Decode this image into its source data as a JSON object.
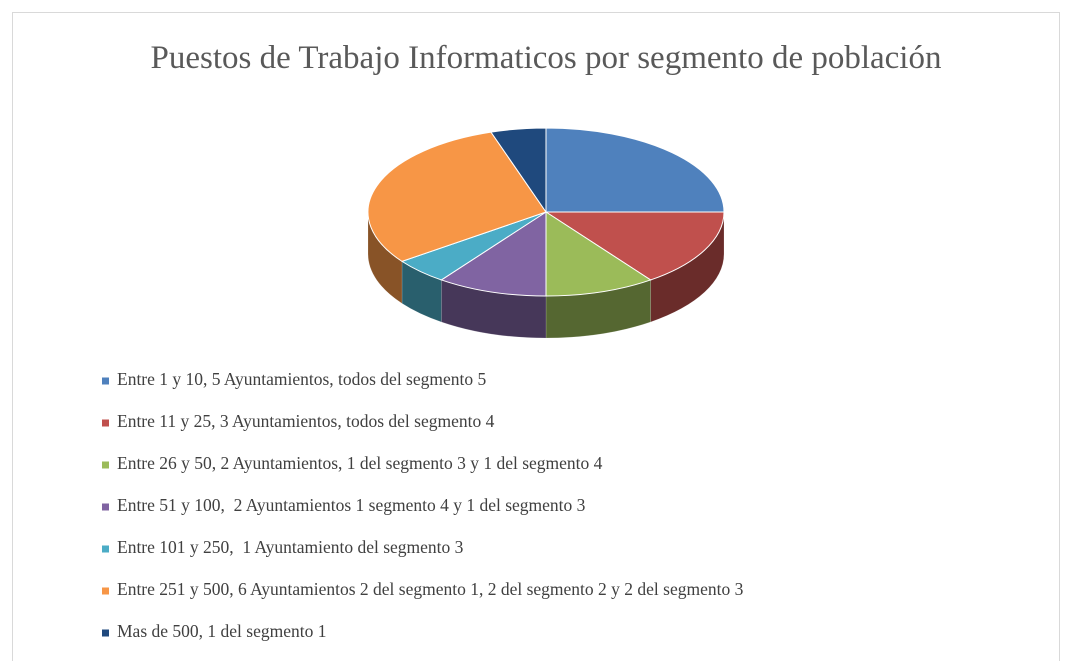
{
  "chart_data": {
    "type": "pie",
    "three_d": true,
    "title": "Puestos de Trabajo Informaticos por segmento de población",
    "categories": [
      "Entre 1 y 10, 5 Ayuntamientos, todos del segmento 5",
      "Entre 11 y 25, 3 Ayuntamientos, todos del segmento 4",
      "Entre 26 y 50, 2 Ayuntamientos, 1 del segmento 3 y 1 del segmento 4",
      "Entre 51 y 100,  2 Ayuntamientos 1 segmento 4 y 1 del segmento 3",
      "Entre 101 y 250,  1 Ayuntamiento del segmento 3",
      "Entre 251 y 500, 6 Ayuntamientos 2 del segmento 1, 2 del segmento 2 y 2 del segmento 3",
      "Mas de 500, 1 del segmento 1"
    ],
    "values": [
      5,
      3,
      2,
      2,
      1,
      6,
      1
    ],
    "colors": [
      "#4f81bd",
      "#c0504d",
      "#9bbb59",
      "#8064a2",
      "#4bacc6",
      "#f79646",
      "#1f497d"
    ],
    "legend": "bottom"
  }
}
